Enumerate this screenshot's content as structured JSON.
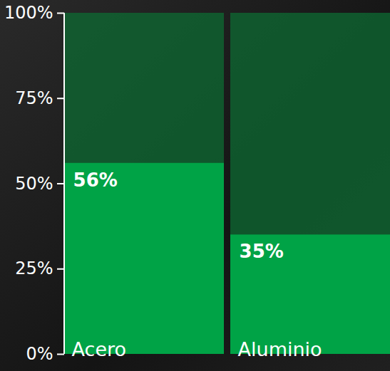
{
  "chart_data": {
    "type": "bar",
    "categories": [
      "Acero",
      "Aluminio"
    ],
    "values": [
      56,
      35
    ],
    "value_labels": [
      "56%",
      "35%"
    ],
    "color": "#00a346",
    "ylim": [
      0,
      100
    ],
    "yticks": [
      {
        "value": 0,
        "label": "0%"
      },
      {
        "value": 25,
        "label": "25%"
      },
      {
        "value": 50,
        "label": "50%"
      },
      {
        "value": 75,
        "label": "75%"
      },
      {
        "value": 100,
        "label": "100%"
      }
    ],
    "grid": false,
    "data_labels": true
  }
}
